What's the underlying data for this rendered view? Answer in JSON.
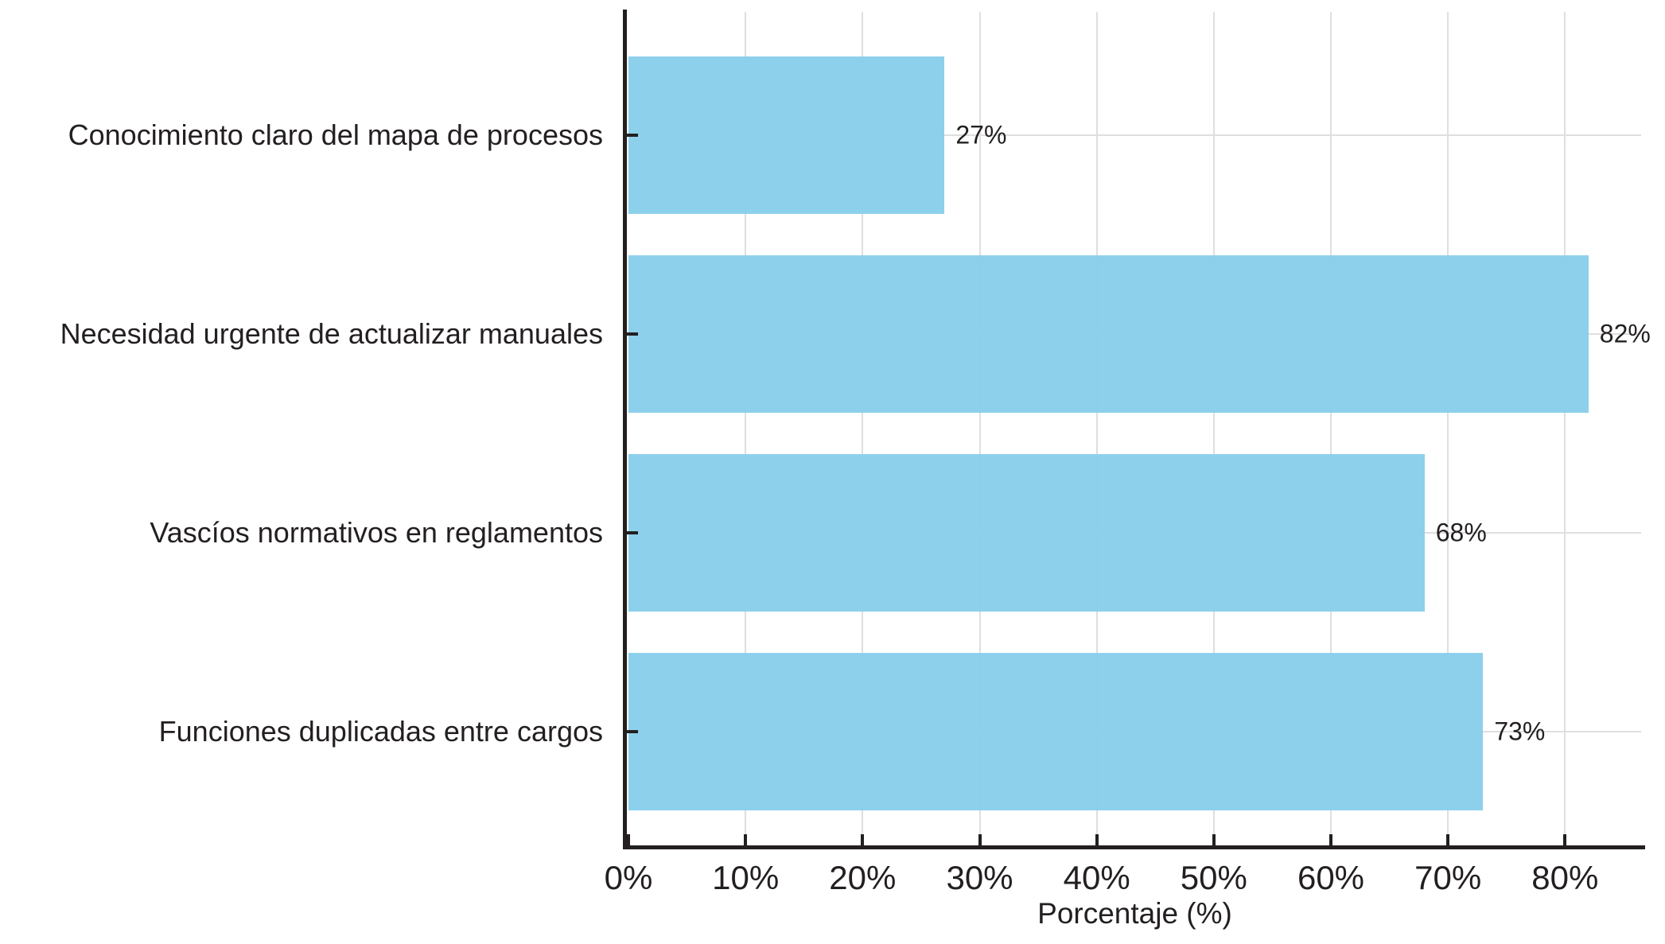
{
  "chart_data": {
    "type": "bar",
    "orientation": "horizontal",
    "title": "",
    "categories": [
      "Conocimiento claro del mapa de procesos",
      "Necesidad urgente de actualizar manuales",
      "Vascíos normativos en reglamentos",
      "Funciones duplicadas entre cargos"
    ],
    "values": [
      27,
      82,
      68,
      73
    ],
    "value_labels": [
      "27%",
      "82%",
      "68%",
      "73%"
    ],
    "xlabel": "Porcentaje (%)",
    "x_ticks": [
      {
        "value": 0,
        "label": "0%"
      },
      {
        "value": 10,
        "label": "10%"
      },
      {
        "value": 20,
        "label": "20%"
      },
      {
        "value": 30,
        "label": "30%"
      },
      {
        "value": 40,
        "label": "40%"
      },
      {
        "value": 50,
        "label": "50%"
      },
      {
        "value": 60,
        "label": "60%"
      },
      {
        "value": 70,
        "label": "70%"
      },
      {
        "value": 80,
        "label": "80%"
      }
    ],
    "xlim": [
      0,
      86.5
    ],
    "grid": true,
    "legend_position": "none",
    "colors": {
      "bar": "#87CEEB",
      "axis": "#231F20",
      "grid": "#dfdfdf",
      "text": "#231F20"
    }
  }
}
